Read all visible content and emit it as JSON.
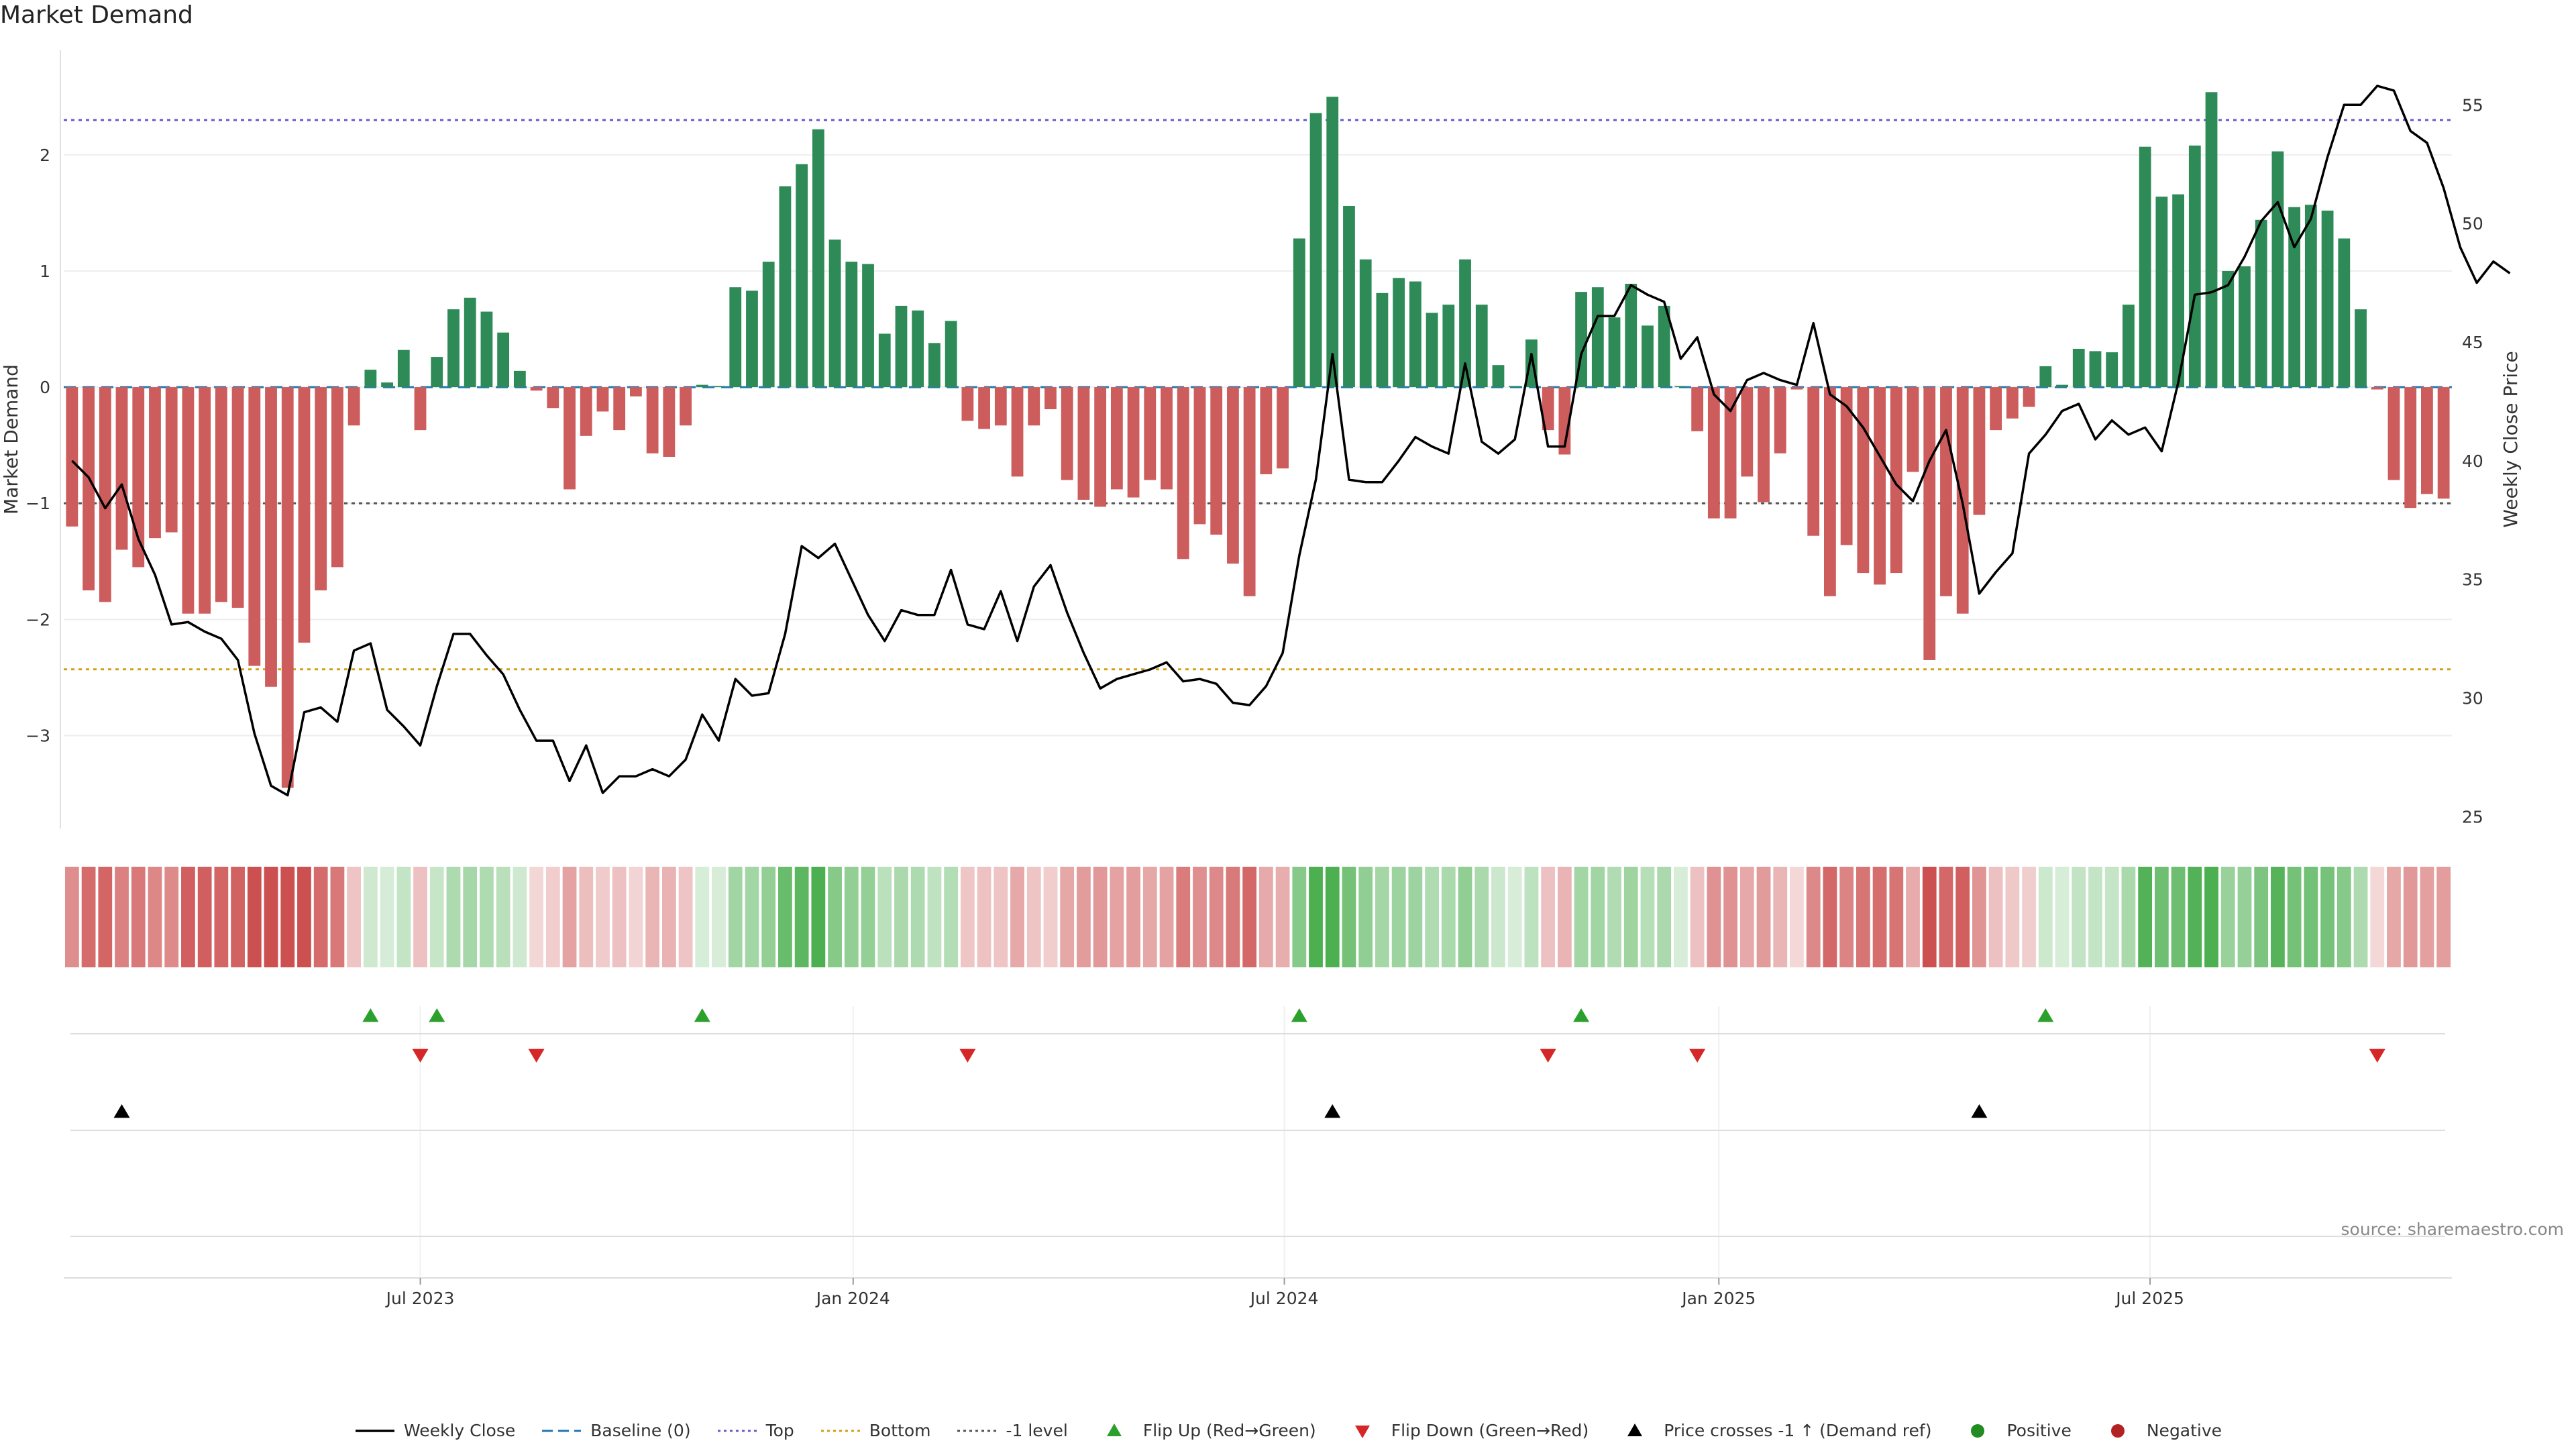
{
  "title": "Market Demand",
  "source": "source: sharemaestro.com",
  "colors": {
    "positive_bar": "#2e8b57",
    "negative_bar": "#cd5c5c",
    "price_line": "#000000",
    "baseline": "#1f77b4",
    "top": "#6a5acd",
    "bottom": "#d4a017",
    "minus1": "#555555",
    "flip_up": "#2ca02c",
    "flip_down": "#d62728",
    "cross_marker": "#000000",
    "positive_dot": "#228b22",
    "negative_dot": "#b22222"
  },
  "legend": [
    {
      "label": "Weekly Close",
      "kind": "line",
      "color": "#000000"
    },
    {
      "label": "Baseline (0)",
      "kind": "dash",
      "color": "#1f77b4"
    },
    {
      "label": "Top",
      "kind": "dot",
      "color": "#6a5acd"
    },
    {
      "label": "Bottom",
      "kind": "dot",
      "color": "#d4a017"
    },
    {
      "label": "-1 level",
      "kind": "dot",
      "color": "#555555"
    },
    {
      "label": "Flip Up (Red→Green)",
      "kind": "tri-up",
      "color": "#2ca02c"
    },
    {
      "label": "Flip Down (Green→Red)",
      "kind": "tri-down",
      "color": "#d62728"
    },
    {
      "label": "Price crosses -1 ↑ (Demand ref)",
      "kind": "tri-up",
      "color": "#000000"
    },
    {
      "label": "Positive",
      "kind": "circle",
      "color": "#228b22"
    },
    {
      "label": "Negative",
      "kind": "circle",
      "color": "#b22222"
    }
  ],
  "chart_data": {
    "type": "bar",
    "title": "Market Demand",
    "ylabel": "Market Demand",
    "y2label": "Weekly Close Price",
    "ylim": [
      -3.8,
      2.9
    ],
    "y2lim": [
      24.5,
      57.3
    ],
    "yticks": [
      -3,
      -2,
      -1,
      0,
      1,
      2
    ],
    "y2ticks": [
      25,
      30,
      35,
      40,
      45,
      50,
      55
    ],
    "xticks": [
      "Jul 2023",
      "Jan 2024",
      "Jul 2024",
      "Jan 2025",
      "Jul 2025"
    ],
    "xtick_weeks": [
      21.5,
      47.6,
      73.6,
      99.8,
      125.8
    ],
    "reference_lines": {
      "baseline": 0,
      "top": 2.3,
      "bottom": -2.43,
      "minus1": -1
    },
    "demand": [
      -1.2,
      -1.75,
      -1.85,
      -1.4,
      -1.55,
      -1.3,
      -1.25,
      -1.95,
      -1.95,
      -1.85,
      -1.9,
      -2.4,
      -2.58,
      -3.45,
      -2.2,
      -1.75,
      -1.55,
      -0.33,
      0.15,
      0.04,
      0.32,
      -0.37,
      0.26,
      0.67,
      0.77,
      0.65,
      0.47,
      0.14,
      -0.03,
      -0.18,
      -0.88,
      -0.42,
      -0.21,
      -0.37,
      -0.08,
      -0.57,
      -0.6,
      -0.33,
      0.02,
      0.01,
      0.86,
      0.83,
      1.08,
      1.73,
      1.92,
      2.22,
      1.27,
      1.08,
      1.06,
      0.46,
      0.7,
      0.66,
      0.38,
      0.57,
      -0.29,
      -0.36,
      -0.33,
      -0.77,
      -0.33,
      -0.19,
      -0.8,
      -0.97,
      -1.03,
      -0.88,
      -0.95,
      -0.8,
      -0.88,
      -1.48,
      -1.18,
      -1.27,
      -1.52,
      -1.8,
      -0.75,
      -0.7,
      1.28,
      2.36,
      2.5,
      1.56,
      1.1,
      0.81,
      0.94,
      0.91,
      0.64,
      0.71,
      1.1,
      0.71,
      0.19,
      0.01,
      0.41,
      -0.37,
      -0.58,
      0.82,
      0.86,
      0.6,
      0.89,
      0.53,
      0.7,
      0.01,
      -0.38,
      -1.13,
      -1.13,
      -0.77,
      -0.99,
      -0.57,
      -0.02,
      -1.28,
      -1.8,
      -1.36,
      -1.6,
      -1.7,
      -1.6,
      -0.73,
      -2.35,
      -1.8,
      -1.95,
      -1.1,
      -0.37,
      -0.27,
      -0.17,
      0.18,
      0.02,
      0.33,
      0.31,
      0.3,
      0.71,
      2.07,
      1.64,
      1.66,
      2.08,
      2.54,
      1.0,
      1.04,
      1.44,
      2.03,
      1.55,
      1.57,
      1.52,
      1.28,
      0.67,
      -0.02,
      -0.8,
      -1.04,
      -0.92,
      -0.96
    ],
    "weekly_close": [
      40.0,
      39.3,
      38.0,
      39.0,
      36.7,
      35.2,
      33.1,
      33.2,
      32.8,
      32.5,
      31.6,
      28.5,
      26.3,
      25.9,
      29.4,
      29.6,
      29.0,
      32.0,
      32.3,
      29.5,
      28.8,
      28.0,
      30.5,
      32.7,
      32.7,
      31.8,
      31.0,
      29.5,
      28.2,
      28.2,
      26.5,
      28.0,
      26.0,
      26.7,
      26.7,
      27.0,
      26.7,
      27.4,
      29.3,
      28.2,
      30.8,
      30.1,
      30.2,
      32.7,
      36.4,
      35.9,
      36.5,
      35.0,
      33.5,
      32.4,
      33.7,
      33.5,
      33.5,
      35.4,
      33.1,
      32.9,
      34.5,
      32.4,
      34.7,
      35.6,
      33.6,
      31.9,
      30.4,
      30.8,
      31.0,
      31.2,
      31.5,
      30.7,
      30.8,
      30.6,
      29.8,
      29.7,
      30.5,
      31.9,
      36.0,
      39.2,
      44.5,
      39.2,
      39.1,
      39.1,
      40.0,
      41.0,
      40.6,
      40.3,
      44.1,
      40.8,
      40.3,
      40.9,
      44.5,
      40.6,
      40.6,
      44.5,
      46.1,
      46.1,
      47.4,
      47.0,
      46.7,
      44.3,
      45.2,
      42.8,
      42.1,
      43.4,
      43.7,
      43.4,
      43.2,
      45.8,
      42.8,
      42.3,
      41.4,
      40.2,
      39.0,
      38.3,
      40.0,
      41.3,
      38.2,
      34.4,
      35.3,
      36.1,
      40.3,
      41.1,
      42.1,
      42.4,
      40.9,
      41.7,
      41.1,
      41.4,
      40.4,
      43.3,
      47.0,
      47.1,
      47.4,
      48.6,
      50.1,
      50.9,
      49.0,
      50.2,
      52.8,
      55.0,
      55.0,
      55.8,
      55.6,
      53.9,
      53.4,
      51.5,
      49.0,
      47.5,
      48.4,
      47.9
    ],
    "flip_up_weeks": [
      18,
      22,
      38,
      74,
      91,
      119
    ],
    "flip_down_weeks": [
      21,
      28,
      54,
      89,
      98,
      139
    ],
    "price_cross_weeks": [
      3,
      76,
      115
    ]
  }
}
